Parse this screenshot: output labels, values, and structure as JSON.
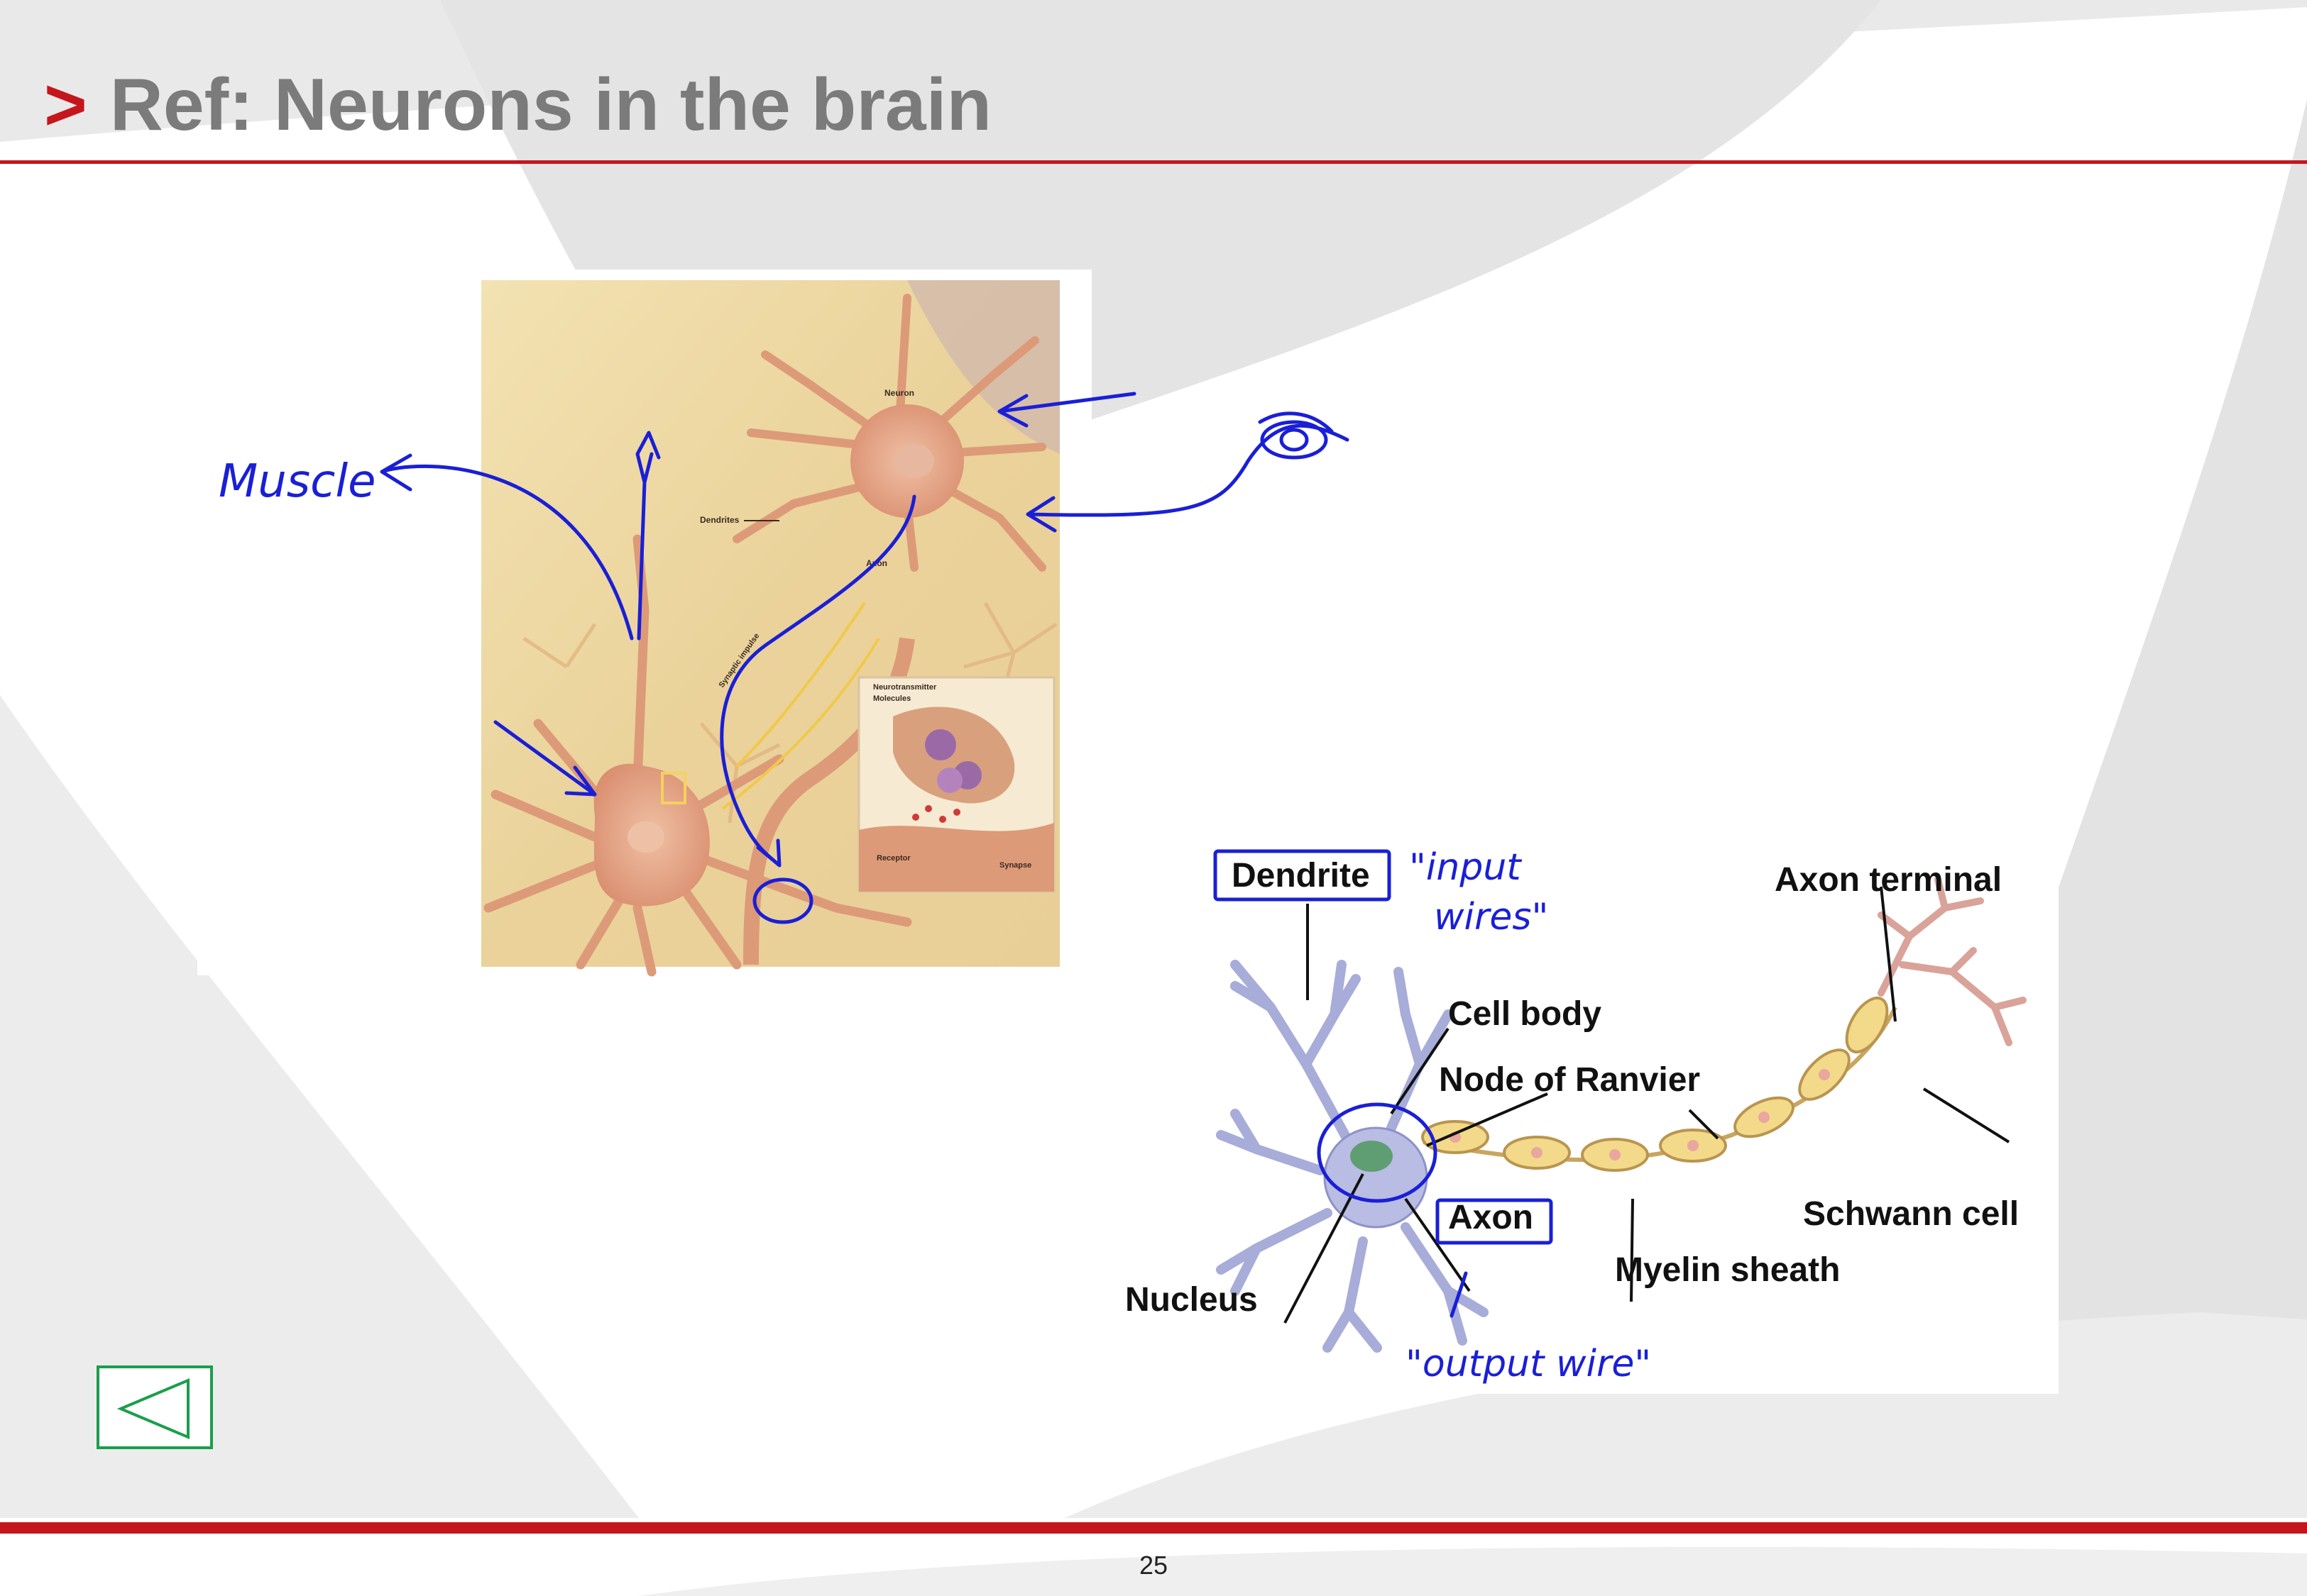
{
  "slide": {
    "title_marker": ">",
    "title": "Ref: Neurons in the brain",
    "page_number": "25",
    "accent_color": "#c4161c",
    "nav_button_color": "#1b9e4b"
  },
  "figure1": {
    "labels": {
      "neuron": "Neuron",
      "dendrites": "Dendrites",
      "axon": "Axon",
      "synaptic_impulse": "Synaptic impulse",
      "neurotransmitter": "Neurotransmitter",
      "molecules": "Molecules",
      "receptor": "Receptor",
      "synapse": "Synapse"
    },
    "annotation_muscle": "Muscle"
  },
  "figure2": {
    "labels": {
      "dendrite": "Dendrite",
      "cell_body": "Cell body",
      "node_of_ranvier": "Node of Ranvier",
      "axon_terminal": "Axon terminal",
      "schwann_cell": "Schwann cell",
      "myelin_sheath": "Myelin sheath",
      "axon": "Axon",
      "nucleus": "Nucleus"
    },
    "annotation_input_line1": "\"input",
    "annotation_input_line2": "wires\"",
    "annotation_output": "\"output wire\""
  }
}
